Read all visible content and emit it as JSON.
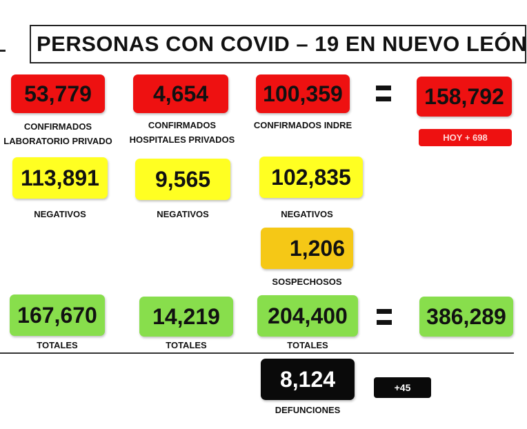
{
  "title": "PERSONAS CON COVID – 19 EN NUEVO LEÓN",
  "colors": {
    "red": "#ee1111",
    "yellow": "#ffff22",
    "amber": "#f5c816",
    "green": "#88de4c",
    "black": "#0a0a0a"
  },
  "confirmados": {
    "laboratorio_privado": {
      "value": "53,779",
      "label_line1": "CONFIRMADOS",
      "label_line2": "LABORATORIO PRIVADO"
    },
    "hospitales_privados": {
      "value": "4,654",
      "label_line1": "CONFIRMADOS",
      "label_line2": "HOSPITALES PRIVADOS"
    },
    "indre": {
      "value": "100,359",
      "label": "CONFIRMADOS INDRE"
    },
    "total": {
      "value": "158,792"
    },
    "hoy": "HOY + 698"
  },
  "negativos": {
    "laboratorio_privado": {
      "value": "113,891",
      "label": "NEGATIVOS"
    },
    "hospitales_privados": {
      "value": "9,565",
      "label": "NEGATIVOS"
    },
    "indre": {
      "value": "102,835",
      "label": "NEGATIVOS"
    }
  },
  "sospechosos": {
    "value": "1,206",
    "label": "SOSPECHOSOS"
  },
  "totales": {
    "laboratorio_privado": {
      "value": "167,670",
      "label": "TOTALES"
    },
    "hospitales_privados": {
      "value": "14,219",
      "label": "TOTALES"
    },
    "indre": {
      "value": "204,400",
      "label": "TOTALES"
    },
    "grand_total": {
      "value": "386,289"
    }
  },
  "defunciones": {
    "value": "8,124",
    "label": "DEFUNCIONES",
    "delta": "+45"
  }
}
